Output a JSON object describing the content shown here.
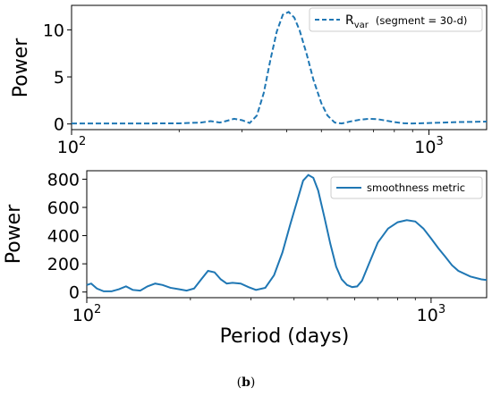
{
  "chart_data": [
    {
      "type": "line",
      "x_scale": "log",
      "xlim": [
        100,
        1450
      ],
      "ylim": [
        -0.6,
        12.6
      ],
      "ylabel": "Power",
      "xticks": [
        {
          "value": 100,
          "base": "10",
          "exp": "2"
        },
        {
          "value": 1000,
          "base": "10",
          "exp": "3"
        }
      ],
      "yticks": [
        0,
        5,
        10
      ],
      "grid": false,
      "legend_placement": "top-right",
      "series": [
        {
          "name_main": "R",
          "name_sub": "var",
          "name_rest": "(segment = 30-d)",
          "style": "dashed",
          "color": "#1f77b4",
          "x": [
            100,
            150,
            200,
            230,
            245,
            260,
            270,
            285,
            300,
            315,
            330,
            345,
            360,
            375,
            390,
            405,
            420,
            435,
            455,
            475,
            500,
            520,
            545,
            570,
            600,
            640,
            680,
            720,
            760,
            800,
            850,
            900,
            1000,
            1100,
            1200,
            1300,
            1450
          ],
          "y": [
            0.05,
            0.05,
            0.07,
            0.15,
            0.3,
            0.15,
            0.3,
            0.55,
            0.4,
            0.1,
            0.9,
            3.3,
            6.8,
            9.8,
            11.6,
            11.9,
            11.3,
            9.9,
            7.4,
            4.7,
            2.2,
            0.9,
            0.15,
            0.05,
            0.25,
            0.45,
            0.55,
            0.5,
            0.35,
            0.2,
            0.08,
            0.05,
            0.1,
            0.15,
            0.2,
            0.22,
            0.25
          ]
        }
      ]
    },
    {
      "type": "line",
      "x_scale": "log",
      "xlim": [
        100,
        1450
      ],
      "ylim": [
        -40,
        860
      ],
      "ylabel": "Power",
      "xlabel": "Period (days)",
      "xticks": [
        {
          "value": 100,
          "base": "10",
          "exp": "2"
        },
        {
          "value": 1000,
          "base": "10",
          "exp": "3"
        }
      ],
      "yticks": [
        0,
        200,
        400,
        600,
        800
      ],
      "grid": false,
      "legend_placement": "top-right",
      "series": [
        {
          "name": "smoothness metric",
          "style": "solid",
          "color": "#1f77b4",
          "x": [
            100,
            103,
            107,
            112,
            118,
            124,
            130,
            136,
            143,
            150,
            158,
            166,
            175,
            185,
            195,
            205,
            215,
            225,
            235,
            245,
            255,
            265,
            280,
            295,
            310,
            330,
            350,
            370,
            390,
            410,
            425,
            440,
            455,
            470,
            490,
            510,
            530,
            550,
            570,
            590,
            610,
            630,
            660,
            700,
            750,
            800,
            850,
            900,
            950,
            1000,
            1050,
            1100,
            1150,
            1200,
            1300,
            1400,
            1450
          ],
          "y": [
            50,
            60,
            25,
            5,
            5,
            20,
            40,
            15,
            10,
            40,
            60,
            50,
            30,
            20,
            10,
            25,
            90,
            150,
            140,
            90,
            60,
            65,
            60,
            35,
            15,
            30,
            120,
            280,
            480,
            660,
            790,
            830,
            810,
            720,
            530,
            340,
            180,
            90,
            50,
            35,
            40,
            80,
            200,
            350,
            450,
            495,
            510,
            500,
            450,
            380,
            310,
            250,
            190,
            150,
            110,
            90,
            85
          ]
        }
      ]
    }
  ],
  "caption": {
    "open": "(",
    "letter": "b",
    "close": ")"
  }
}
